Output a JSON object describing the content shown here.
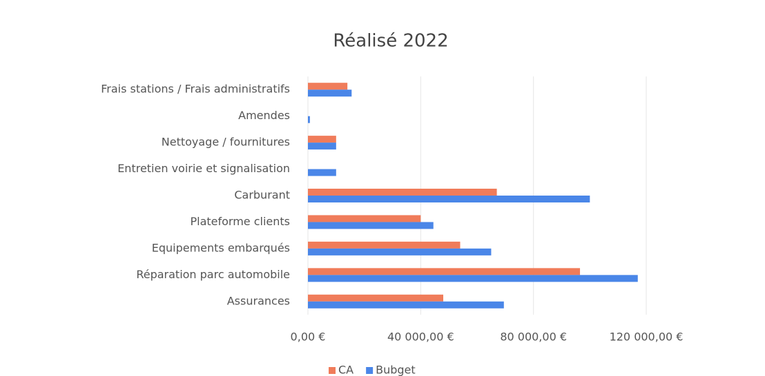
{
  "chart_data": {
    "type": "bar",
    "orientation": "horizontal",
    "title": "Réalisé 2022",
    "categories": [
      "Frais stations / Frais administratifs",
      "Amendes",
      "Nettoyage / fournitures",
      "Entretien voirie et signalisation",
      "Carburant",
      "Plateforme clients",
      "Equipements embarqués",
      "Réparation parc automobile",
      "Assurances"
    ],
    "series": [
      {
        "name": "CA",
        "color": "#f07c5a",
        "values": [
          14000,
          null,
          10000,
          null,
          67000,
          40000,
          54000,
          96500,
          48000
        ]
      },
      {
        "name": "Bubget",
        "color": "#4a86e8",
        "values": [
          15500,
          700,
          10000,
          10000,
          100000,
          44500,
          65000,
          117000,
          69500
        ]
      }
    ],
    "xlim": [
      0,
      120000
    ],
    "xticks": [
      {
        "value": 0,
        "label": "0,00 €"
      },
      {
        "value": 40000,
        "label": "40 000,00 €"
      },
      {
        "value": 80000,
        "label": "80 000,00 €"
      },
      {
        "value": 120000,
        "label": "120 000,00 €"
      }
    ],
    "grid": true,
    "legend": "bottom"
  }
}
